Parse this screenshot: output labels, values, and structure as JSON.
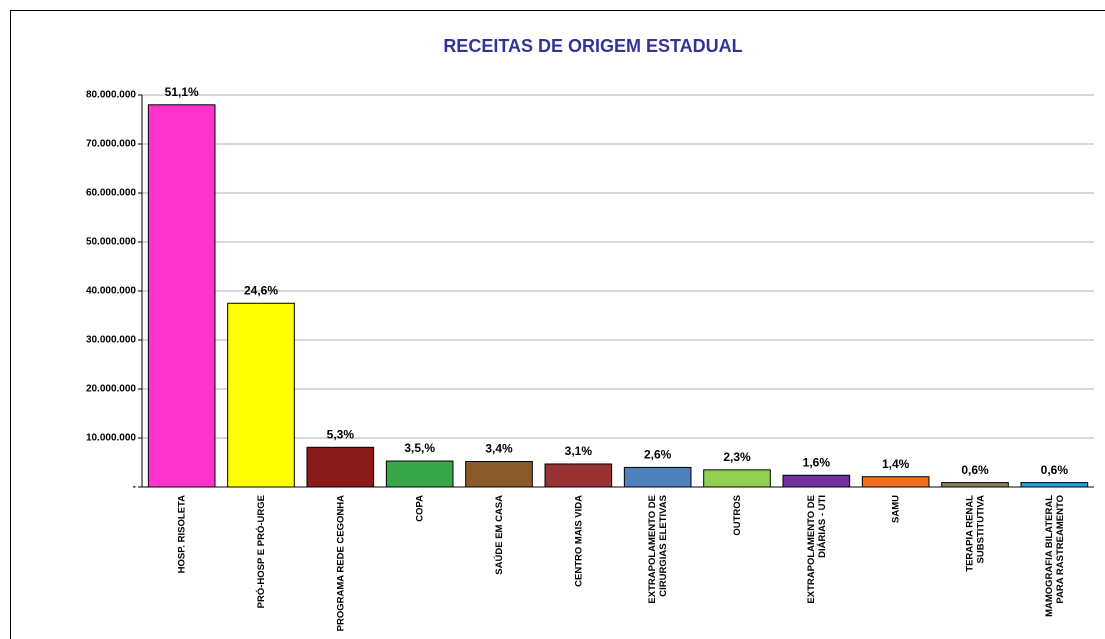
{
  "chart_data": {
    "type": "bar",
    "title": "RECEITAS DE ORIGEM ESTADUAL",
    "categories": [
      "HOSP. RISOLETA",
      "PRÓ-HOSP E PRÓ-URGE",
      "PROGRAMA REDE CEGONHA",
      "COPA",
      "SAÚDE EM CASA",
      "CENTRO MAIS VIDA",
      "EXTRAPOLAMENTO DE CIRURGIAS ELETIVAS",
      "OUTROS",
      "EXTRAPOLAMENTO DE DIÁRIAS - UTI",
      "SAMU",
      "TERAPIA RENAL SUBSTITUTIVA",
      "MAMOGRAFIA BILATERAL PARA RASTREAMENTO"
    ],
    "values": [
      78000000,
      37500000,
      8100000,
      5300000,
      5200000,
      4700000,
      4000000,
      3500000,
      2400000,
      2100000,
      900000,
      900000
    ],
    "share_labels": [
      "51,1%",
      "24,6%",
      "5,3%",
      "3,5,%",
      "3,4%",
      "3,1%",
      "2,6%",
      "2,3%",
      "1,6%",
      "1,4%",
      "0,6%",
      "0,6%"
    ],
    "colors": [
      "#ff33cc",
      "#ffff00",
      "#8b1a1a",
      "#3aa64a",
      "#8b5a2b",
      "#993333",
      "#4f81bd",
      "#92d050",
      "#7030a0",
      "#f07020",
      "#8b7d5a",
      "#1fa0e0"
    ],
    "ylim": [
      0,
      80000000
    ],
    "yticks": [
      {
        "value": 0,
        "label": "-"
      },
      {
        "value": 10000000,
        "label": "10.000.000"
      },
      {
        "value": 20000000,
        "label": "20.000.000"
      },
      {
        "value": 30000000,
        "label": "30.000.000"
      },
      {
        "value": 40000000,
        "label": "40.000.000"
      },
      {
        "value": 50000000,
        "label": "50.000.000"
      },
      {
        "value": 60000000,
        "label": "60.000.000"
      },
      {
        "value": 70000000,
        "label": "70.000.000"
      },
      {
        "value": 80000000,
        "label": "80.000.000"
      }
    ],
    "grid": true
  }
}
